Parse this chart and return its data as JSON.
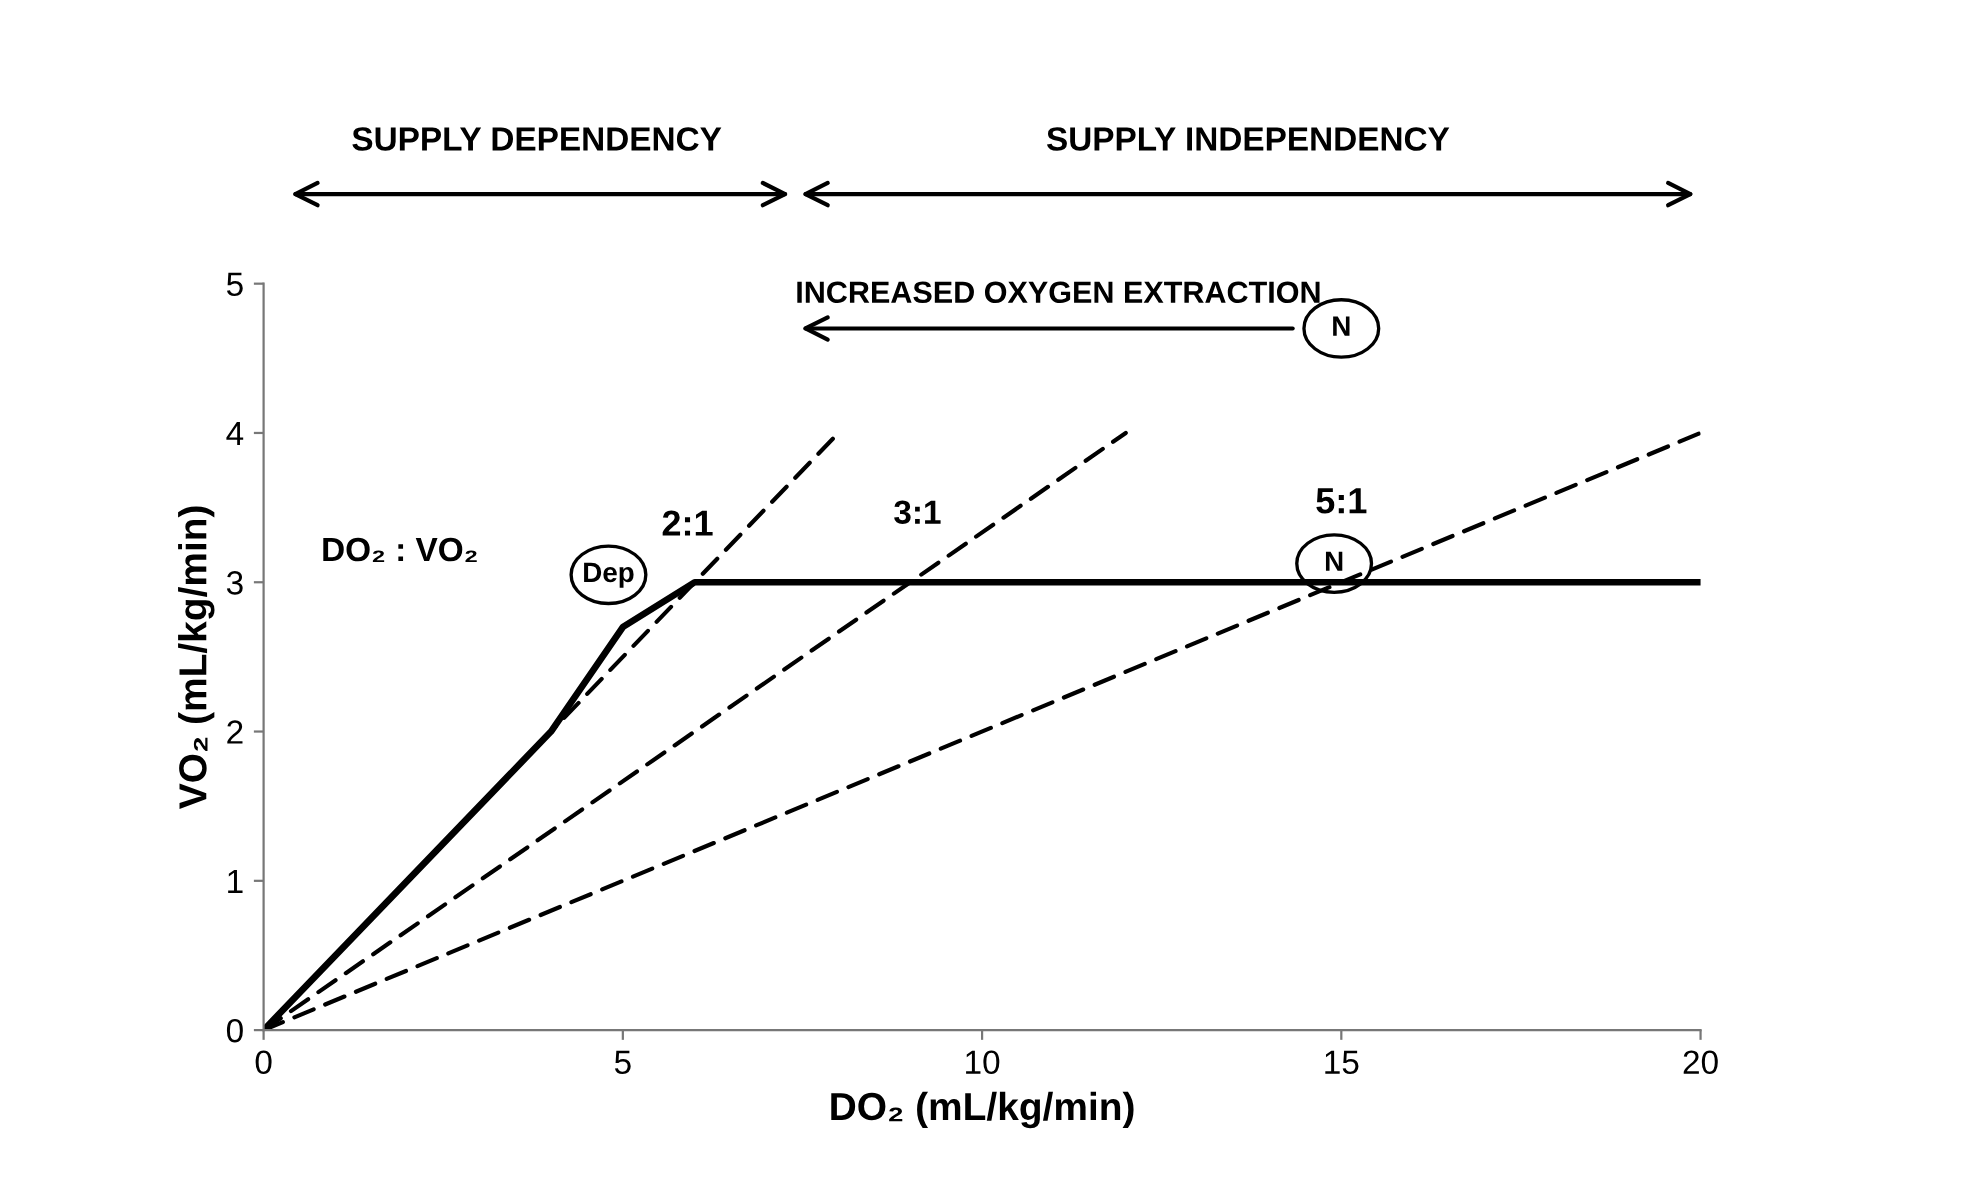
{
  "chart_data": {
    "type": "line",
    "xlabel": "DO₂ (mL/kg/min)",
    "ylabel": "VO₂ (mL/kg/min)",
    "xlim": [
      0,
      20
    ],
    "xticks": [
      0,
      5,
      10,
      15,
      20
    ],
    "ylim": [
      0,
      5
    ],
    "yticks": [
      0,
      1,
      2,
      3,
      4,
      5
    ],
    "grid": false,
    "series": [
      {
        "color": "#000000",
        "line_style": "solid",
        "x": [
          0,
          4,
          5,
          6,
          20
        ],
        "values": [
          0,
          2,
          2.7,
          3,
          3
        ]
      },
      {
        "color": "#000000",
        "line_style": "dashed",
        "x": [
          0,
          8
        ],
        "values": [
          0,
          4
        ]
      },
      {
        "color": "#000000",
        "line_style": "dashed",
        "x": [
          0,
          12
        ],
        "values": [
          0,
          4
        ]
      },
      {
        "color": "#000000",
        "line_style": "dashed",
        "x": [
          0,
          20
        ],
        "values": [
          0,
          4
        ]
      }
    ],
    "annotations": [
      "SUPPLY DEPENDENCY",
      "SUPPLY INDEPENDENCY",
      "INCREASED OXYGEN EXTRACTION",
      "N",
      "DO₂ : VO₂",
      "Dep",
      "2:1",
      "3:1",
      "5:1",
      "N"
    ]
  }
}
